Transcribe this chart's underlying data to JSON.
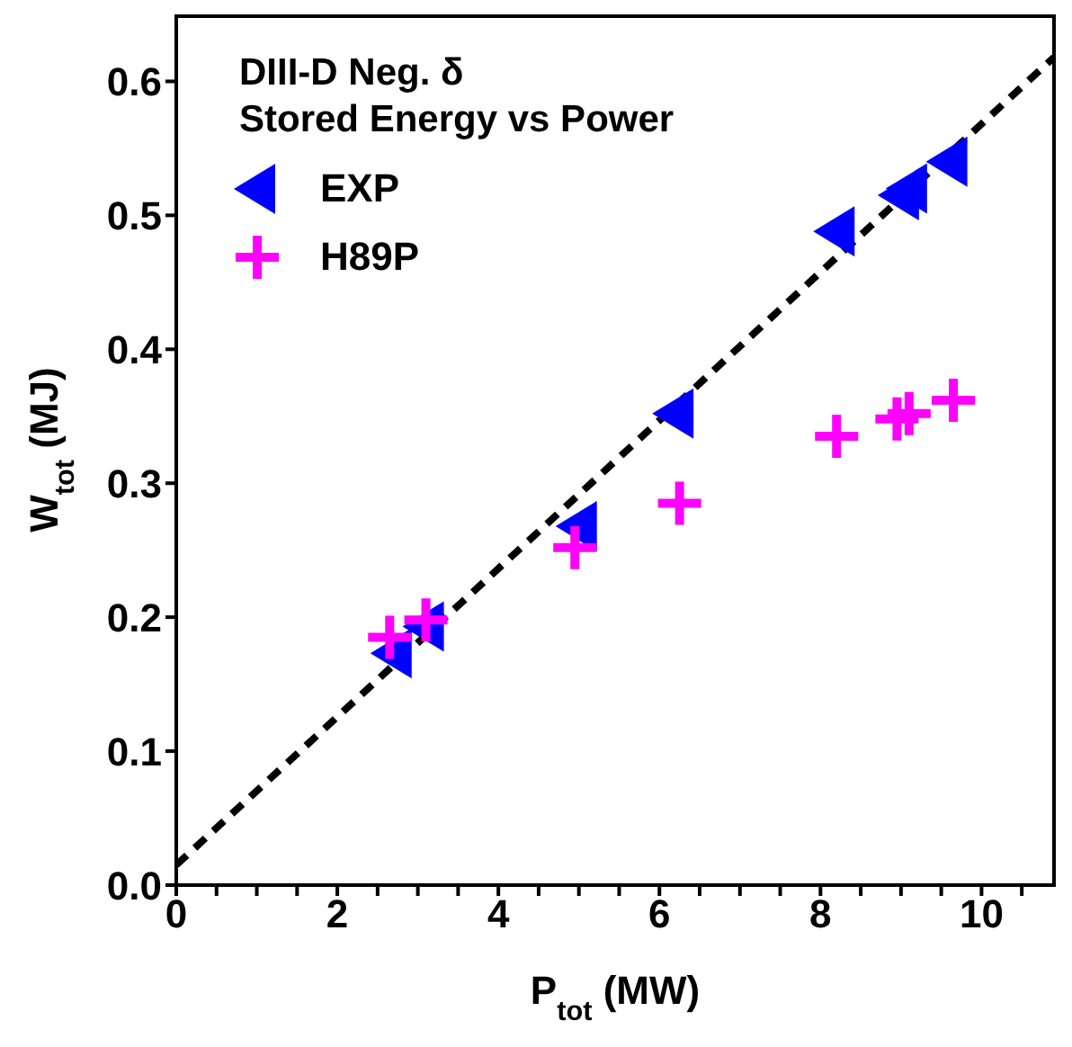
{
  "chart_data": {
    "type": "scatter",
    "title": "DIII-D Neg. δ",
    "subtitle": "Stored Energy vs Power",
    "xlabel": "P$_{tot}$ (MW)",
    "ylabel": "W$_{tot}$ (MJ)",
    "xlim": [
      0,
      10.9
    ],
    "xticks": [
      0,
      {
        "value": 0.5,
        "label": null
      },
      2,
      {
        "value": 1,
        "label": null
      },
      {
        "value": 1.5,
        "label": null
      },
      {
        "value": 2.5,
        "label": null
      },
      {
        "value": 3,
        "label": null
      },
      {
        "value": 3.5,
        "label": null
      },
      4,
      {
        "value": 4.5,
        "label": null
      },
      {
        "value": 5,
        "label": null
      },
      {
        "value": 5.5,
        "label": null
      },
      6,
      {
        "value": 6.5,
        "label": null
      },
      {
        "value": 7,
        "label": null
      },
      {
        "value": 7.5,
        "label": null
      },
      8,
      {
        "value": 8.5,
        "label": null
      },
      {
        "value": 9,
        "label": null
      },
      {
        "value": 9.5,
        "label": null
      },
      10,
      {
        "value": 10.5,
        "label": null
      }
    ],
    "ylim": [
      0,
      0.65
    ],
    "yticks": [
      {
        "value": 0,
        "label": "0.0"
      },
      0.1,
      0.2,
      0.3,
      0.4,
      0.5,
      0.6
    ],
    "legend": "top left",
    "series": [
      {
        "name": "EXP",
        "color": "#0000ff",
        "marker": "triangle",
        "x": [
          2.7,
          3.1,
          5.0,
          6.2,
          8.2,
          9.0,
          9.1,
          9.6
        ],
        "values": [
          0.173,
          0.193,
          0.268,
          0.352,
          0.488,
          0.515,
          0.52,
          0.54
        ]
      },
      {
        "name": "H89P",
        "color": "#ff00ff",
        "marker": "cross",
        "x": [
          2.65,
          3.1,
          4.95,
          6.25,
          8.2,
          8.95,
          9.1,
          9.65
        ],
        "values": [
          0.185,
          0.198,
          0.252,
          0.285,
          0.335,
          0.348,
          0.352,
          0.362
        ]
      },
      {
        "type": "line",
        "color": "#000000",
        "line_style": "dashed",
        "marker": "none",
        "x": [
          0,
          10.9
        ],
        "values": [
          0.015,
          0.618
        ]
      }
    ]
  }
}
